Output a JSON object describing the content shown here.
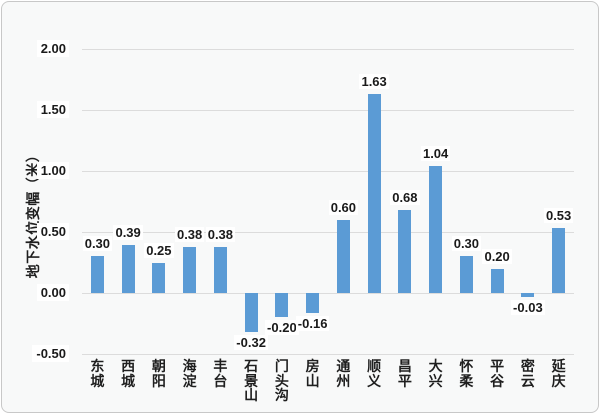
{
  "chart_data": {
    "type": "bar",
    "categories": [
      "东城",
      "西城",
      "朝阳",
      "海淀",
      "丰台",
      "石景山",
      "门头沟",
      "房山",
      "通州",
      "顺义",
      "昌平",
      "大兴",
      "怀柔",
      "平谷",
      "密云",
      "延庆"
    ],
    "values": [
      0.3,
      0.39,
      0.25,
      0.38,
      0.38,
      -0.32,
      -0.2,
      -0.16,
      0.6,
      1.63,
      0.68,
      1.04,
      0.3,
      0.2,
      -0.03,
      0.53
    ],
    "title": "",
    "xlabel": "",
    "ylabel": "地下水位变幅（米）",
    "ylim": [
      -0.5,
      2.0
    ],
    "ytick_step": 0.5,
    "yticks": [
      "2.00",
      "1.50",
      "1.00",
      "0.50",
      "0.00",
      "-0.50"
    ],
    "grid": true,
    "legend": false,
    "bar_color": "#5b9bd5",
    "gridline_color": "#dcdcdc",
    "background_color": "#f8f9f9",
    "label_background_color": "#ffffff",
    "data_label_decimals": 2
  }
}
